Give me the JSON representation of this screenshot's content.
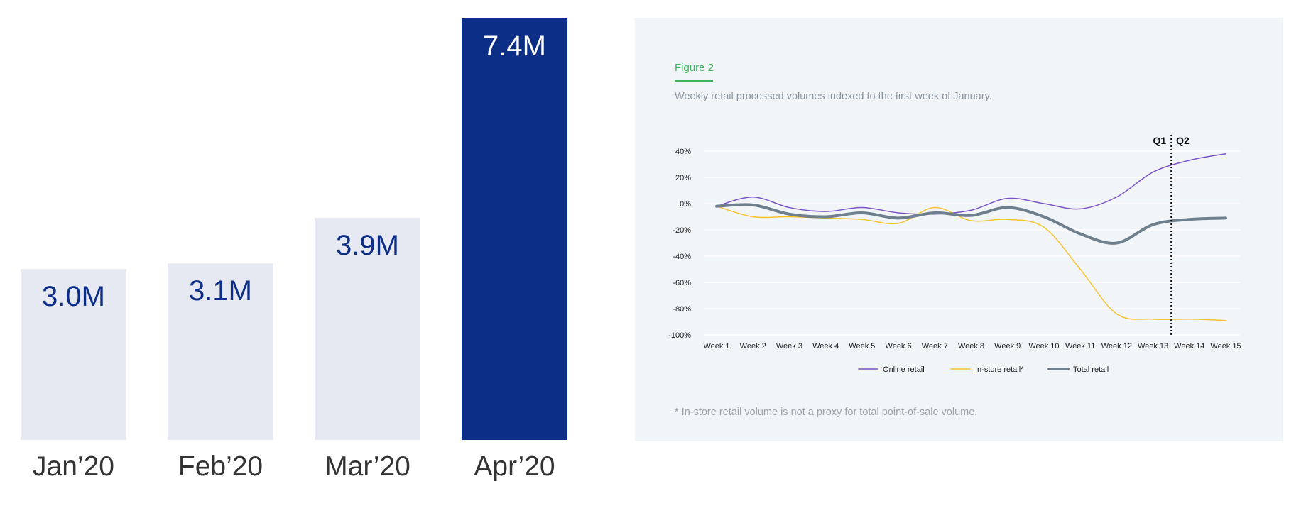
{
  "chart_data": [
    {
      "type": "bar",
      "categories": [
        "Jan’20",
        "Feb’20",
        "Mar’20",
        "Apr’20"
      ],
      "values": [
        3.0,
        3.1,
        3.9,
        7.4
      ],
      "value_labels": [
        "3.0M",
        "3.1M",
        "3.9M",
        "7.4M"
      ],
      "highlight_index": 3,
      "ylim": [
        0,
        7.4
      ],
      "colors": {
        "bar": "#e6e9f2",
        "highlight": "#0c2e87",
        "label": "#0c2e87",
        "highlight_label": "#ffffff",
        "category": "#333333"
      }
    },
    {
      "type": "line",
      "figure_label": "Figure 2",
      "subtitle": "Weekly retail processed volumes indexed to the first week of January.",
      "x": [
        "Week 1",
        "Week 2",
        "Week 3",
        "Week 4",
        "Week 5",
        "Week 6",
        "Week 7",
        "Week 8",
        "Week 9",
        "Week 10",
        "Week 11",
        "Week 12",
        "Week 13",
        "Week 14",
        "Week 15"
      ],
      "ylim": [
        -100,
        40
      ],
      "yticks": [
        40,
        20,
        0,
        -20,
        -40,
        -60,
        -80,
        -100
      ],
      "ytick_labels": [
        "40%",
        "20%",
        "0%",
        "-20%",
        "-40%",
        "-60%",
        "-80%",
        "-100%"
      ],
      "grid": true,
      "divider": {
        "after": "Week 13",
        "position": 13.5,
        "left_label": "Q1",
        "right_label": "Q2"
      },
      "series": [
        {
          "name": "Online retail",
          "color": "#7b55c7",
          "width": "thin",
          "values": [
            -2,
            5,
            -3,
            -6,
            -3,
            -7,
            -8,
            -5,
            4,
            0,
            -4,
            5,
            24,
            33,
            38
          ]
        },
        {
          "name": "In-store retail*",
          "color": "#f5c32c",
          "width": "thin",
          "values": [
            -2,
            -10,
            -10,
            -11,
            -12,
            -15,
            -3,
            -13,
            -12,
            -18,
            -50,
            -84,
            -88,
            -88,
            -89
          ]
        },
        {
          "name": "Total retail",
          "color": "#6e7f8d",
          "width": "thick",
          "values": [
            -2,
            -1,
            -8,
            -10,
            -7,
            -11,
            -7,
            -9,
            -3,
            -10,
            -23,
            -30,
            -16,
            -12,
            -11
          ]
        }
      ],
      "legend_position": "bottom",
      "footnote": "* In-store retail volume is not a proxy for total point-of-sale volume.",
      "colors": {
        "panel": "#f2f5f8",
        "accent": "#3cb55c",
        "grid": "#ffffff",
        "axis_text": "#222222"
      }
    }
  ]
}
